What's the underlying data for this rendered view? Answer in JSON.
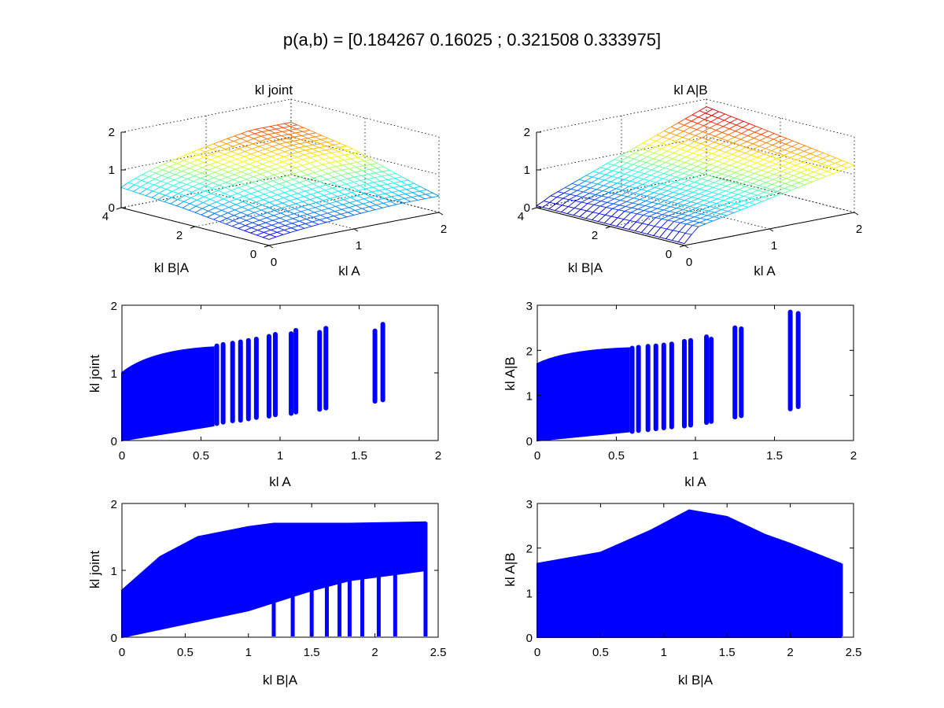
{
  "figure": {
    "title": "p(a,b) = [0.184267 0.16025 ; 0.321508 0.333975]"
  },
  "chart_data": [
    {
      "type": "surface",
      "title": "kl joint",
      "xlabel": "kl A",
      "ylabel": "kl B|A",
      "zlabel": "",
      "xlim": [
        0,
        2
      ],
      "ylim": [
        0,
        4
      ],
      "zlim": [
        0,
        2
      ],
      "xticks": [
        "0",
        "1",
        "2"
      ],
      "yticks": [
        "0",
        "2",
        "4"
      ],
      "zticks": [
        "0",
        "1",
        "2"
      ],
      "grid": true,
      "colormap": "jet",
      "description_values": {
        "z_min": 0.0,
        "z_max": 1.7,
        "samples": [
          {
            "x": 0.0,
            "y": 0.0,
            "z": 0.0
          },
          {
            "x": 0.0,
            "y": 4.0,
            "z": 0.7
          },
          {
            "x": 1.0,
            "y": 1.0,
            "z": 0.95
          },
          {
            "x": 2.0,
            "y": 0.0,
            "z": 1.05
          },
          {
            "x": 2.0,
            "y": 4.0,
            "z": 1.6
          }
        ]
      }
    },
    {
      "type": "surface",
      "title": "kl A|B",
      "xlabel": "kl A",
      "ylabel": "kl B|A",
      "zlabel": "",
      "xlim": [
        0,
        2
      ],
      "ylim": [
        0,
        4
      ],
      "zlim": [
        0,
        2
      ],
      "xticks": [
        "0",
        "1",
        "2"
      ],
      "yticks": [
        "0",
        "2",
        "4"
      ],
      "zticks": [
        "0",
        "1",
        "2"
      ],
      "grid": true,
      "colormap": "jet",
      "description_values": {
        "z_min": 0.0,
        "z_max": 1.9,
        "samples": [
          {
            "x": 0.0,
            "y": 0.0,
            "z": 0.0
          },
          {
            "x": 0.0,
            "y": 4.0,
            "z": 0.0
          },
          {
            "x": 1.0,
            "y": 2.0,
            "z": 0.9
          },
          {
            "x": 2.0,
            "y": 0.0,
            "z": 1.2
          },
          {
            "x": 2.0,
            "y": 4.0,
            "z": 1.8
          }
        ]
      }
    },
    {
      "type": "scatter",
      "title": "",
      "xlabel": "kl A",
      "ylabel": "kl joint",
      "xlim": [
        0,
        2
      ],
      "ylim": [
        0,
        2
      ],
      "xticks": [
        "0",
        "0.5",
        "1",
        "1.5",
        "2"
      ],
      "yticks": [
        "0",
        "1",
        "2"
      ],
      "color": "#0000ff",
      "columns": [
        {
          "x": 0.6,
          "ymin": 0.25,
          "ymax": 1.4
        },
        {
          "x": 0.64,
          "ymin": 0.27,
          "ymax": 1.42
        },
        {
          "x": 0.7,
          "ymin": 0.29,
          "ymax": 1.44
        },
        {
          "x": 0.75,
          "ymin": 0.3,
          "ymax": 1.46
        },
        {
          "x": 0.8,
          "ymin": 0.32,
          "ymax": 1.48
        },
        {
          "x": 0.85,
          "ymin": 0.34,
          "ymax": 1.5
        },
        {
          "x": 0.93,
          "ymin": 0.36,
          "ymax": 1.54
        },
        {
          "x": 0.97,
          "ymin": 0.38,
          "ymax": 1.57
        },
        {
          "x": 1.07,
          "ymin": 0.4,
          "ymax": 1.58
        },
        {
          "x": 1.1,
          "ymin": 0.42,
          "ymax": 1.63
        },
        {
          "x": 1.25,
          "ymin": 0.46,
          "ymax": 1.6
        },
        {
          "x": 1.29,
          "ymin": 0.48,
          "ymax": 1.66
        },
        {
          "x": 1.6,
          "ymin": 0.58,
          "ymax": 1.62
        },
        {
          "x": 1.65,
          "ymin": 0.6,
          "ymax": 1.72
        }
      ],
      "dense_region": {
        "x_from": 0,
        "x_to": 0.58,
        "y_top_start": 1.0,
        "y_top_end": 1.38,
        "y_bottom_start": 0.0,
        "y_bottom_end": 0.22
      }
    },
    {
      "type": "scatter",
      "title": "",
      "xlabel": "kl A",
      "ylabel": "kl A|B",
      "xlim": [
        0,
        2
      ],
      "ylim": [
        0,
        3
      ],
      "xticks": [
        "0",
        "0.5",
        "1",
        "1.5",
        "2"
      ],
      "yticks": [
        "0",
        "1",
        "2",
        "3"
      ],
      "color": "#0000ff",
      "columns": [
        {
          "x": 0.6,
          "ymin": 0.2,
          "ymax": 2.05
        },
        {
          "x": 0.64,
          "ymin": 0.22,
          "ymax": 2.07
        },
        {
          "x": 0.7,
          "ymin": 0.24,
          "ymax": 2.09
        },
        {
          "x": 0.75,
          "ymin": 0.26,
          "ymax": 2.1
        },
        {
          "x": 0.8,
          "ymin": 0.28,
          "ymax": 2.12
        },
        {
          "x": 0.85,
          "ymin": 0.3,
          "ymax": 2.14
        },
        {
          "x": 0.93,
          "ymin": 0.32,
          "ymax": 2.2
        },
        {
          "x": 0.97,
          "ymin": 0.34,
          "ymax": 2.22
        },
        {
          "x": 1.07,
          "ymin": 0.4,
          "ymax": 2.3
        },
        {
          "x": 1.1,
          "ymin": 0.42,
          "ymax": 2.25
        },
        {
          "x": 1.25,
          "ymin": 0.52,
          "ymax": 2.5
        },
        {
          "x": 1.29,
          "ymin": 0.55,
          "ymax": 2.48
        },
        {
          "x": 1.6,
          "ymin": 0.7,
          "ymax": 2.85
        },
        {
          "x": 1.65,
          "ymin": 0.75,
          "ymax": 2.82
        }
      ],
      "dense_region": {
        "x_from": 0,
        "x_to": 0.58,
        "y_top_start": 1.7,
        "y_top_end": 2.05,
        "y_bottom_start": 0.0,
        "y_bottom_end": 0.2
      }
    },
    {
      "type": "scatter",
      "title": "",
      "xlabel": "kl B|A",
      "ylabel": "kl joint",
      "xlim": [
        0,
        2.5
      ],
      "ylim": [
        0,
        2
      ],
      "xticks": [
        "0",
        "0.5",
        "1",
        "1.5",
        "2",
        "2.5"
      ],
      "yticks": [
        "0",
        "1",
        "2"
      ],
      "color": "#0000ff",
      "upper_envelope": [
        [
          0,
          0.7
        ],
        [
          0.3,
          1.2
        ],
        [
          0.6,
          1.5
        ],
        [
          1.0,
          1.65
        ],
        [
          1.2,
          1.7
        ],
        [
          1.8,
          1.7
        ],
        [
          2.4,
          1.72
        ]
      ],
      "lower_envelope": [
        [
          0,
          0.0
        ],
        [
          0.5,
          0.2
        ],
        [
          1.0,
          0.4
        ],
        [
          1.5,
          0.7
        ],
        [
          1.8,
          0.85
        ],
        [
          2.0,
          0.9
        ],
        [
          2.4,
          1.0
        ]
      ]
    },
    {
      "type": "scatter",
      "title": "",
      "xlabel": "kl B|A",
      "ylabel": "kl A|B",
      "xlim": [
        0,
        2.5
      ],
      "ylim": [
        0,
        3
      ],
      "xticks": [
        "0",
        "0.5",
        "1",
        "1.5",
        "2",
        "2.5"
      ],
      "yticks": [
        "0",
        "1",
        "2",
        "3"
      ],
      "color": "#0000ff",
      "upper_envelope": [
        [
          0,
          1.65
        ],
        [
          0.5,
          1.9
        ],
        [
          0.9,
          2.4
        ],
        [
          1.2,
          2.85
        ],
        [
          1.5,
          2.7
        ],
        [
          1.8,
          2.3
        ],
        [
          2.0,
          2.1
        ],
        [
          2.4,
          1.65
        ]
      ],
      "lower_envelope": [
        [
          0,
          0.0
        ],
        [
          2.4,
          0.0
        ]
      ]
    }
  ]
}
